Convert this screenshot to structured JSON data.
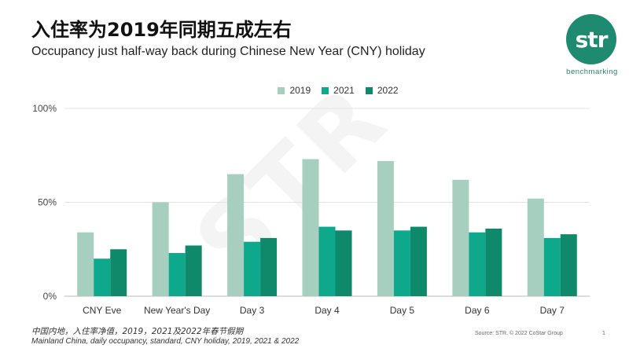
{
  "header": {
    "title": "入住率为2019年同期五成左右",
    "subtitle": "Occupancy just half-way back during Chinese New Year (CNY) holiday"
  },
  "logo": {
    "text": "str",
    "tagline": "benchmarking",
    "color": "#1e8a70"
  },
  "watermark": "STR",
  "chart_data": {
    "type": "bar",
    "title": "",
    "xlabel": "",
    "ylabel": "",
    "categories": [
      "CNY Eve",
      "New Year's Day",
      "Day 3",
      "Day 4",
      "Day 5",
      "Day 6",
      "Day 7"
    ],
    "series": [
      {
        "name": "2019",
        "color": "#a7cfc0",
        "values": [
          34,
          50,
          65,
          73,
          72,
          62,
          52
        ]
      },
      {
        "name": "2021",
        "color": "#0ea88c",
        "values": [
          20,
          23,
          29,
          37,
          35,
          34,
          31
        ]
      },
      {
        "name": "2022",
        "color": "#0e8a6a",
        "values": [
          25,
          27,
          31,
          35,
          37,
          36,
          33
        ]
      }
    ],
    "ylim": [
      0,
      100
    ],
    "yticks": [
      "0%",
      "50%",
      "100%"
    ],
    "grid": true,
    "legend": "top-center"
  },
  "footer": {
    "note_cn": "中国内地，入住率净值，2019，2021及2022年春节假期",
    "note_en": "Mainland China, daily occupancy, standard, CNY holiday, 2019, 2021 & 2022",
    "source": "Source: STR. © 2022 CoStar Group",
    "page": "1"
  }
}
